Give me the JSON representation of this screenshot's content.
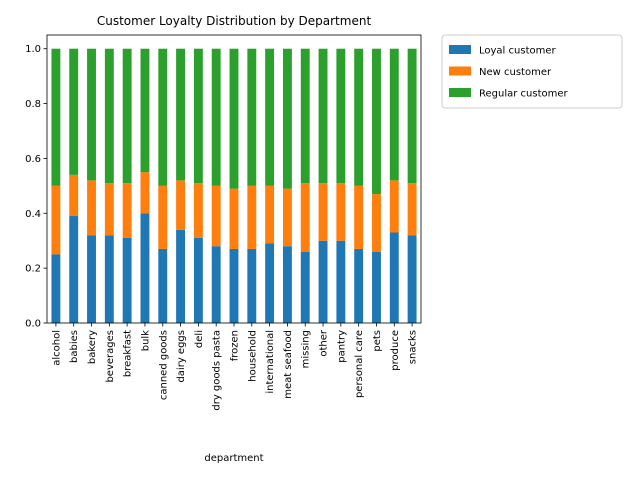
{
  "chart_data": {
    "type": "bar",
    "stacked": true,
    "title": "Customer Loyalty Distribution by Department",
    "xlabel": "department",
    "ylabel": "",
    "ylim": [
      0,
      1.05
    ],
    "yticks": [
      "0.0",
      "0.2",
      "0.4",
      "0.6",
      "0.8",
      "1.0"
    ],
    "grid": false,
    "legend_position": "outside-top-right",
    "categories": [
      "alcohol",
      "babies",
      "bakery",
      "beverages",
      "breakfast",
      "bulk",
      "canned goods",
      "dairy eggs",
      "deli",
      "dry goods pasta",
      "frozen",
      "household",
      "international",
      "meat seafood",
      "missing",
      "other",
      "pantry",
      "personal care",
      "pets",
      "produce",
      "snacks"
    ],
    "series": [
      {
        "name": "Loyal customer",
        "color": "#1f77b4",
        "values": [
          0.25,
          0.39,
          0.32,
          0.32,
          0.31,
          0.4,
          0.27,
          0.34,
          0.31,
          0.28,
          0.27,
          0.27,
          0.29,
          0.28,
          0.26,
          0.3,
          0.3,
          0.27,
          0.26,
          0.33,
          0.32
        ]
      },
      {
        "name": "New customer",
        "color": "#ff7f0e",
        "values": [
          0.25,
          0.15,
          0.2,
          0.19,
          0.2,
          0.15,
          0.23,
          0.18,
          0.2,
          0.22,
          0.22,
          0.23,
          0.21,
          0.21,
          0.25,
          0.21,
          0.21,
          0.23,
          0.21,
          0.19,
          0.19
        ]
      },
      {
        "name": "Regular customer",
        "color": "#2ca02c",
        "values": [
          0.5,
          0.46,
          0.48,
          0.49,
          0.49,
          0.45,
          0.5,
          0.48,
          0.49,
          0.5,
          0.51,
          0.5,
          0.5,
          0.51,
          0.49,
          0.49,
          0.49,
          0.5,
          0.53,
          0.48,
          0.49
        ]
      }
    ]
  }
}
